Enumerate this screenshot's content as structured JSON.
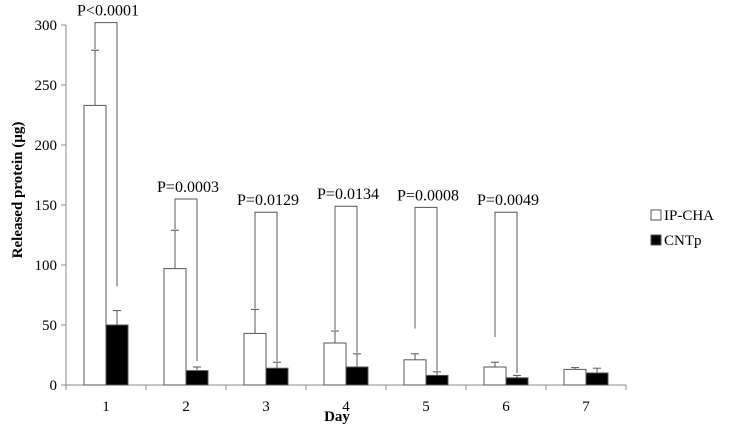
{
  "chart_data": {
    "type": "bar",
    "xlabel": "Day",
    "ylabel": "Released protein (µg)",
    "categories": [
      "1",
      "2",
      "3",
      "4",
      "5",
      "6",
      "7"
    ],
    "ylim": [
      0,
      300
    ],
    "yticks": [
      0,
      50,
      100,
      150,
      200,
      250,
      300
    ],
    "grid": false,
    "legend_position": "right",
    "series": [
      {
        "name": "IP-CHA",
        "fill": "#ffffff",
        "stroke": "#000000",
        "values": [
          233,
          97,
          43,
          35,
          21,
          15,
          13
        ],
        "error": [
          46,
          32,
          20,
          10,
          5,
          4,
          1.5
        ]
      },
      {
        "name": "CNTp",
        "fill": "#000000",
        "stroke": "#000000",
        "values": [
          50,
          12,
          14,
          15,
          8,
          6,
          10
        ],
        "error": [
          12,
          3,
          5,
          11,
          3,
          2,
          4
        ]
      }
    ],
    "annotations": [
      {
        "day": "1",
        "text": "P<0.0001",
        "bracket_top": 302,
        "left_start": 280,
        "right_start": 82
      },
      {
        "day": "2",
        "text": "P=0.0003",
        "bracket_top": 155,
        "left_start": 130,
        "right_start": 20
      },
      {
        "day": "3",
        "text": "P=0.0129",
        "bracket_top": 144,
        "left_start": 64,
        "right_start": 20
      },
      {
        "day": "4",
        "text": "P=0.0134",
        "bracket_top": 149,
        "left_start": 46,
        "right_start": 27
      },
      {
        "day": "5",
        "text": "P=0.0008",
        "bracket_top": 148,
        "left_start": 47,
        "right_start": 12
      },
      {
        "day": "6",
        "text": "P=0.0049",
        "bracket_top": 144,
        "left_start": 40,
        "right_start": 10
      }
    ]
  }
}
